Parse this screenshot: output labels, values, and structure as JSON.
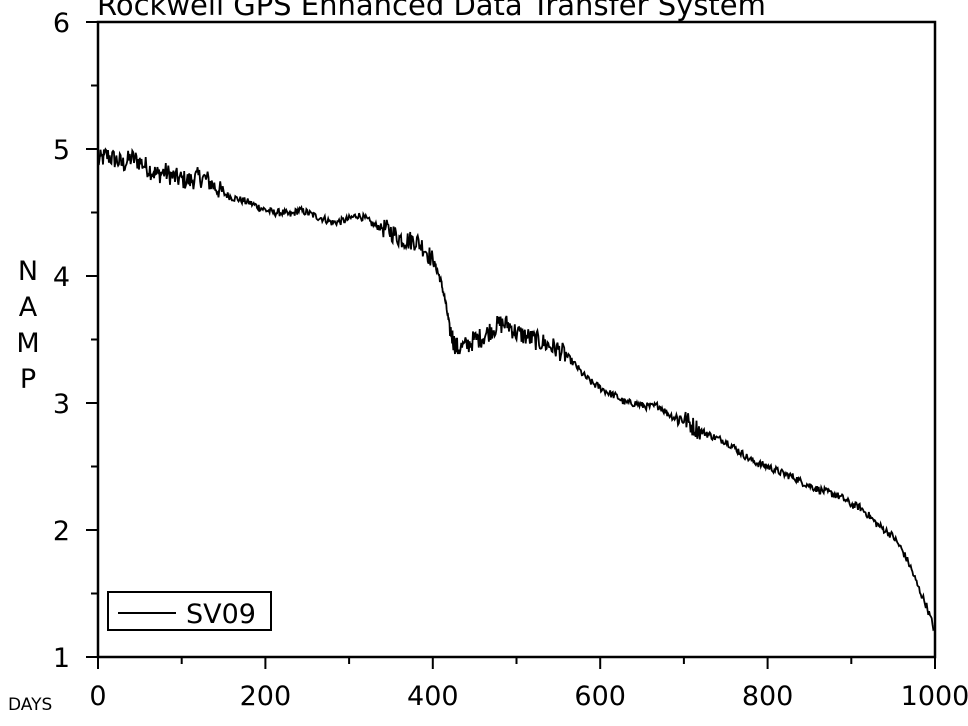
{
  "chart_data": {
    "type": "line",
    "title": "Rockwell GPS Enhanced Data Transfer System",
    "xlabel": "DAYS",
    "ylabel": "NAMP",
    "xlim": [
      0,
      1000
    ],
    "ylim": [
      1,
      6
    ],
    "x_ticks": [
      0,
      200,
      400,
      600,
      800,
      1000
    ],
    "x_tick_labels": [
      "0",
      "200",
      "400",
      "600",
      "800",
      "1000"
    ],
    "y_ticks": [
      1,
      2,
      3,
      4,
      5,
      6
    ],
    "y_tick_labels": [
      "1",
      "2",
      "3",
      "4",
      "5",
      "6"
    ],
    "x_minor_step": 100,
    "y_minor_step": 0.5,
    "grid": false,
    "legend_position": "bottom-left",
    "series": [
      {
        "name": "SV09",
        "color": "#000000",
        "x": [
          0,
          10,
          20,
          30,
          40,
          50,
          60,
          70,
          80,
          90,
          100,
          110,
          120,
          130,
          140,
          150,
          160,
          170,
          180,
          190,
          200,
          210,
          220,
          230,
          240,
          250,
          260,
          270,
          280,
          290,
          300,
          310,
          320,
          330,
          340,
          350,
          360,
          370,
          380,
          390,
          400,
          405,
          410,
          415,
          420,
          425,
          430,
          440,
          450,
          460,
          470,
          480,
          490,
          500,
          510,
          520,
          530,
          540,
          550,
          560,
          570,
          580,
          590,
          600,
          610,
          620,
          630,
          640,
          650,
          660,
          670,
          680,
          690,
          700,
          710,
          720,
          730,
          740,
          750,
          760,
          770,
          780,
          790,
          800,
          810,
          820,
          830,
          840,
          850,
          860,
          870,
          880,
          890,
          900,
          910,
          920,
          930,
          940,
          950,
          960,
          970,
          980,
          990,
          1000
        ],
        "y": [
          4.9,
          4.95,
          4.92,
          4.88,
          4.93,
          4.9,
          4.85,
          4.8,
          4.82,
          4.78,
          4.76,
          4.75,
          4.78,
          4.76,
          4.7,
          4.65,
          4.62,
          4.6,
          4.58,
          4.55,
          4.52,
          4.5,
          4.5,
          4.48,
          4.52,
          4.5,
          4.47,
          4.45,
          4.42,
          4.43,
          4.45,
          4.48,
          4.45,
          4.4,
          4.38,
          4.35,
          4.3,
          4.28,
          4.28,
          4.22,
          4.12,
          4.05,
          3.95,
          3.8,
          3.6,
          3.48,
          3.43,
          3.45,
          3.5,
          3.52,
          3.58,
          3.62,
          3.62,
          3.55,
          3.53,
          3.5,
          3.48,
          3.45,
          3.42,
          3.37,
          3.3,
          3.22,
          3.16,
          3.12,
          3.08,
          3.05,
          3.0,
          3.0,
          2.98,
          2.97,
          2.98,
          2.92,
          2.88,
          2.88,
          2.82,
          2.78,
          2.75,
          2.72,
          2.7,
          2.65,
          2.6,
          2.55,
          2.52,
          2.5,
          2.47,
          2.44,
          2.42,
          2.38,
          2.35,
          2.32,
          2.3,
          2.28,
          2.25,
          2.2,
          2.18,
          2.12,
          2.05,
          2.0,
          1.95,
          1.85,
          1.72,
          1.55,
          1.4,
          1.2
        ]
      }
    ]
  }
}
